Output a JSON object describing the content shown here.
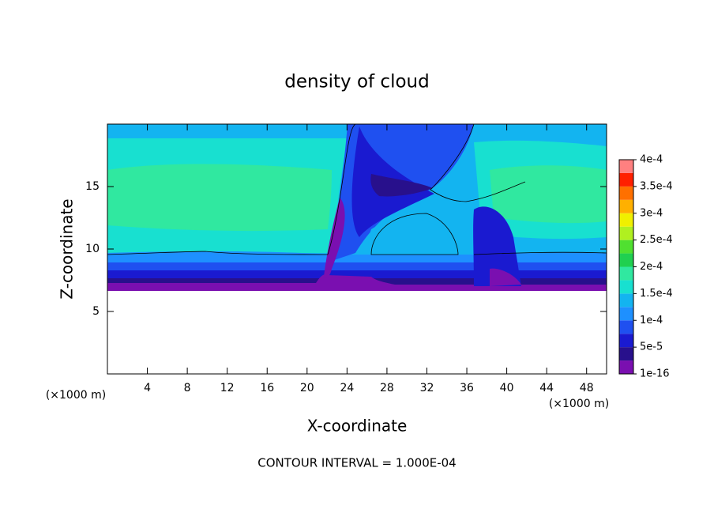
{
  "chart_data": {
    "type": "contour",
    "title": "density of cloud",
    "x_label": "X-coordinate",
    "y_label": "Z-coordinate",
    "x_unit": "(×1000 m)",
    "y_unit": "(×1000 m)",
    "footer": "CONTOUR INTERVAL = 1.000E-04",
    "xlim": [
      0,
      50
    ],
    "xticks": [
      4,
      8,
      12,
      16,
      20,
      24,
      28,
      32,
      36,
      40,
      44,
      48
    ],
    "ylim": [
      0,
      20
    ],
    "yticks": [
      5,
      10,
      15
    ],
    "colorbar_lim": [
      1e-16,
      0.0004
    ],
    "colorbar_ticks": [
      {
        "value": 1e-16,
        "label": "1e-16"
      },
      {
        "value": 5e-05,
        "label": "5e-5"
      },
      {
        "value": 0.0001,
        "label": "1e-4"
      },
      {
        "value": 0.00015,
        "label": "1.5e-4"
      },
      {
        "value": 0.0002,
        "label": "2e-4"
      },
      {
        "value": 0.00025,
        "label": "2.5e-4"
      },
      {
        "value": 0.0003,
        "label": "3e-4"
      },
      {
        "value": 0.00035,
        "label": "3.5e-4"
      },
      {
        "value": 0.0004,
        "label": "4e-4"
      }
    ],
    "levels": [
      "#7a0fb0",
      "#28108c",
      "#1a1ad0",
      "#1f50f0",
      "#1e90ff",
      "#13b4f0",
      "#18e0d0",
      "#30e8a0",
      "#20d050",
      "#50e030",
      "#b0f020",
      "#f0f000",
      "#ffb000",
      "#ff7000",
      "#ff2000",
      "#ff8080"
    ]
  }
}
